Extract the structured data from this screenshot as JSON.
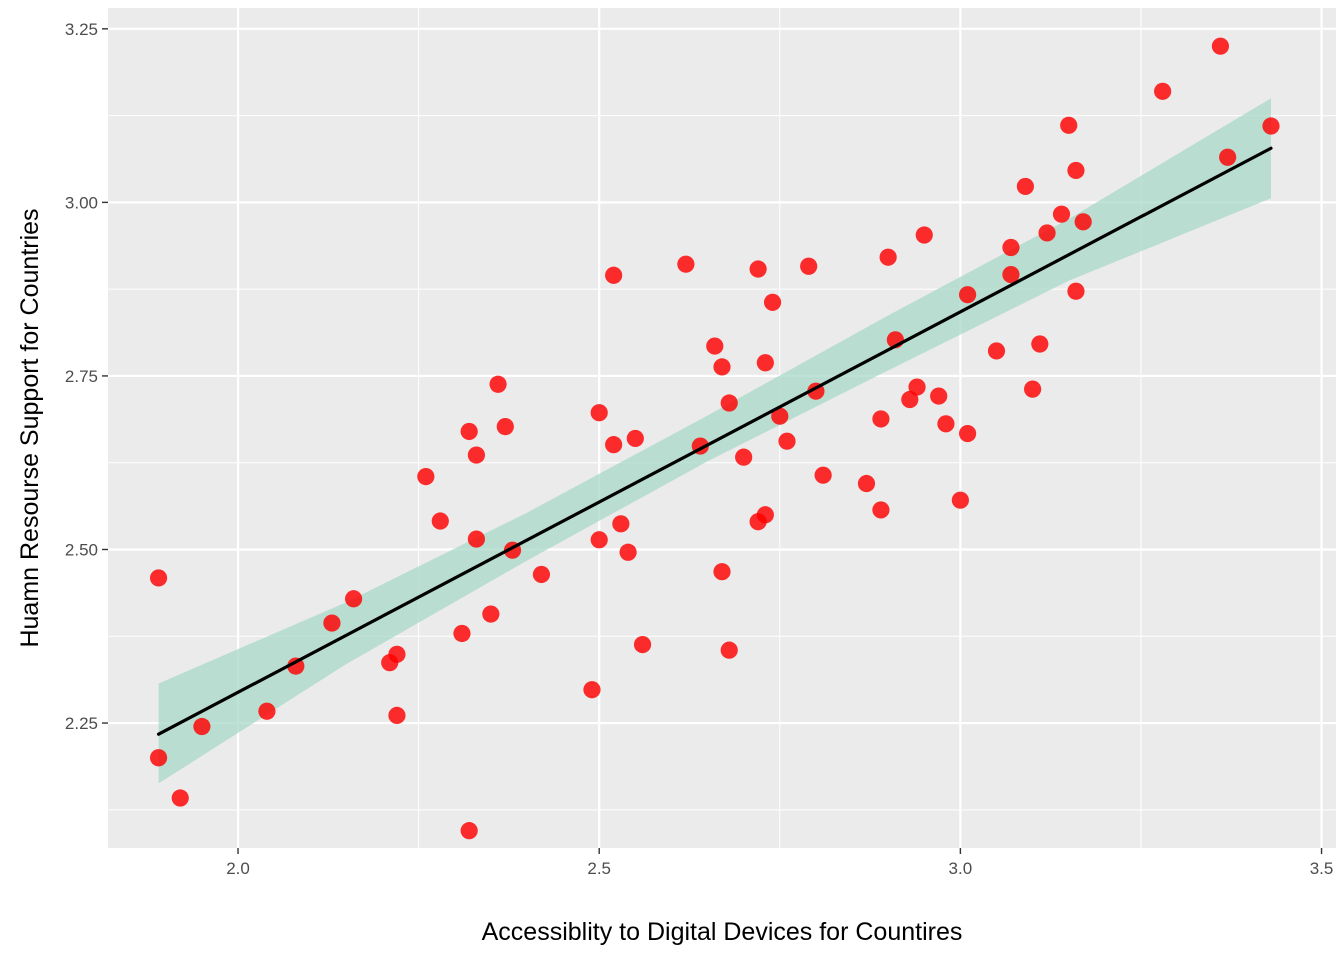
{
  "chart_data": {
    "type": "scatter",
    "title": "",
    "xlabel": "Accessiblity to Digital Devices for Countires",
    "ylabel": "Huamn Resourse Support for Countries",
    "xlim": [
      1.82,
      3.52
    ],
    "ylim": [
      2.07,
      3.28
    ],
    "x_ticks": [
      2.0,
      2.5,
      3.0,
      3.5
    ],
    "x_tick_labels": [
      "2.0",
      "2.5",
      "3.0",
      "3.5"
    ],
    "y_ticks": [
      2.25,
      2.5,
      2.75,
      3.0,
      3.25
    ],
    "y_tick_labels": [
      "2.25",
      "2.50",
      "2.75",
      "3.00",
      "3.25"
    ],
    "grid": true,
    "colors": {
      "panel_background": "#ebebeb",
      "grid": "#ffffff",
      "points": "#ff0000",
      "trend_line": "#000000",
      "confidence_band": "#a8d8c8"
    },
    "trend_line": {
      "x": [
        1.89,
        3.43
      ],
      "y": [
        2.234,
        3.078
      ]
    },
    "confidence_band": {
      "x": [
        1.89,
        2.15,
        2.4,
        2.65,
        2.9,
        3.15,
        3.43
      ],
      "lower": [
        2.163,
        2.335,
        2.484,
        2.627,
        2.758,
        2.887,
        3.006
      ],
      "upper": [
        2.307,
        2.424,
        2.553,
        2.693,
        2.837,
        2.976,
        3.15
      ]
    },
    "points": [
      {
        "x": 1.89,
        "y": 2.459
      },
      {
        "x": 1.89,
        "y": 2.2
      },
      {
        "x": 1.92,
        "y": 2.142
      },
      {
        "x": 1.95,
        "y": 2.245
      },
      {
        "x": 2.04,
        "y": 2.267
      },
      {
        "x": 2.08,
        "y": 2.332
      },
      {
        "x": 2.13,
        "y": 2.394
      },
      {
        "x": 2.16,
        "y": 2.429
      },
      {
        "x": 2.21,
        "y": 2.337
      },
      {
        "x": 2.22,
        "y": 2.349
      },
      {
        "x": 2.22,
        "y": 2.261
      },
      {
        "x": 2.26,
        "y": 2.605
      },
      {
        "x": 2.28,
        "y": 2.541
      },
      {
        "x": 2.31,
        "y": 2.379
      },
      {
        "x": 2.32,
        "y": 2.67
      },
      {
        "x": 2.32,
        "y": 2.095
      },
      {
        "x": 2.33,
        "y": 2.636
      },
      {
        "x": 2.33,
        "y": 2.515
      },
      {
        "x": 2.35,
        "y": 2.407
      },
      {
        "x": 2.36,
        "y": 2.738
      },
      {
        "x": 2.37,
        "y": 2.677
      },
      {
        "x": 2.38,
        "y": 2.499
      },
      {
        "x": 2.42,
        "y": 2.464
      },
      {
        "x": 2.49,
        "y": 2.298
      },
      {
        "x": 2.5,
        "y": 2.697
      },
      {
        "x": 2.5,
        "y": 2.514
      },
      {
        "x": 2.52,
        "y": 2.895
      },
      {
        "x": 2.52,
        "y": 2.651
      },
      {
        "x": 2.53,
        "y": 2.537
      },
      {
        "x": 2.54,
        "y": 2.496
      },
      {
        "x": 2.55,
        "y": 2.66
      },
      {
        "x": 2.56,
        "y": 2.363
      },
      {
        "x": 2.62,
        "y": 2.911
      },
      {
        "x": 2.64,
        "y": 2.649
      },
      {
        "x": 2.66,
        "y": 2.793
      },
      {
        "x": 2.67,
        "y": 2.468
      },
      {
        "x": 2.67,
        "y": 2.763
      },
      {
        "x": 2.68,
        "y": 2.711
      },
      {
        "x": 2.68,
        "y": 2.355
      },
      {
        "x": 2.7,
        "y": 2.633
      },
      {
        "x": 2.72,
        "y": 2.904
      },
      {
        "x": 2.72,
        "y": 2.54
      },
      {
        "x": 2.73,
        "y": 2.769
      },
      {
        "x": 2.73,
        "y": 2.55
      },
      {
        "x": 2.74,
        "y": 2.856
      },
      {
        "x": 2.75,
        "y": 2.692
      },
      {
        "x": 2.76,
        "y": 2.656
      },
      {
        "x": 2.79,
        "y": 2.908
      },
      {
        "x": 2.8,
        "y": 2.728
      },
      {
        "x": 2.81,
        "y": 2.607
      },
      {
        "x": 2.87,
        "y": 2.595
      },
      {
        "x": 2.89,
        "y": 2.557
      },
      {
        "x": 2.89,
        "y": 2.688
      },
      {
        "x": 2.9,
        "y": 2.921
      },
      {
        "x": 2.91,
        "y": 2.802
      },
      {
        "x": 2.93,
        "y": 2.716
      },
      {
        "x": 2.94,
        "y": 2.734
      },
      {
        "x": 2.95,
        "y": 2.953
      },
      {
        "x": 2.97,
        "y": 2.721
      },
      {
        "x": 2.98,
        "y": 2.681
      },
      {
        "x": 3.0,
        "y": 2.571
      },
      {
        "x": 3.01,
        "y": 2.667
      },
      {
        "x": 3.01,
        "y": 2.867
      },
      {
        "x": 3.05,
        "y": 2.786
      },
      {
        "x": 3.07,
        "y": 2.935
      },
      {
        "x": 3.07,
        "y": 2.896
      },
      {
        "x": 3.09,
        "y": 3.023
      },
      {
        "x": 3.1,
        "y": 2.731
      },
      {
        "x": 3.11,
        "y": 2.796
      },
      {
        "x": 3.12,
        "y": 2.956
      },
      {
        "x": 3.14,
        "y": 2.983
      },
      {
        "x": 3.15,
        "y": 3.111
      },
      {
        "x": 3.16,
        "y": 3.046
      },
      {
        "x": 3.16,
        "y": 2.872
      },
      {
        "x": 3.17,
        "y": 2.972
      },
      {
        "x": 3.28,
        "y": 3.16
      },
      {
        "x": 3.36,
        "y": 3.225
      },
      {
        "x": 3.37,
        "y": 3.065
      },
      {
        "x": 3.43,
        "y": 3.11
      }
    ]
  }
}
